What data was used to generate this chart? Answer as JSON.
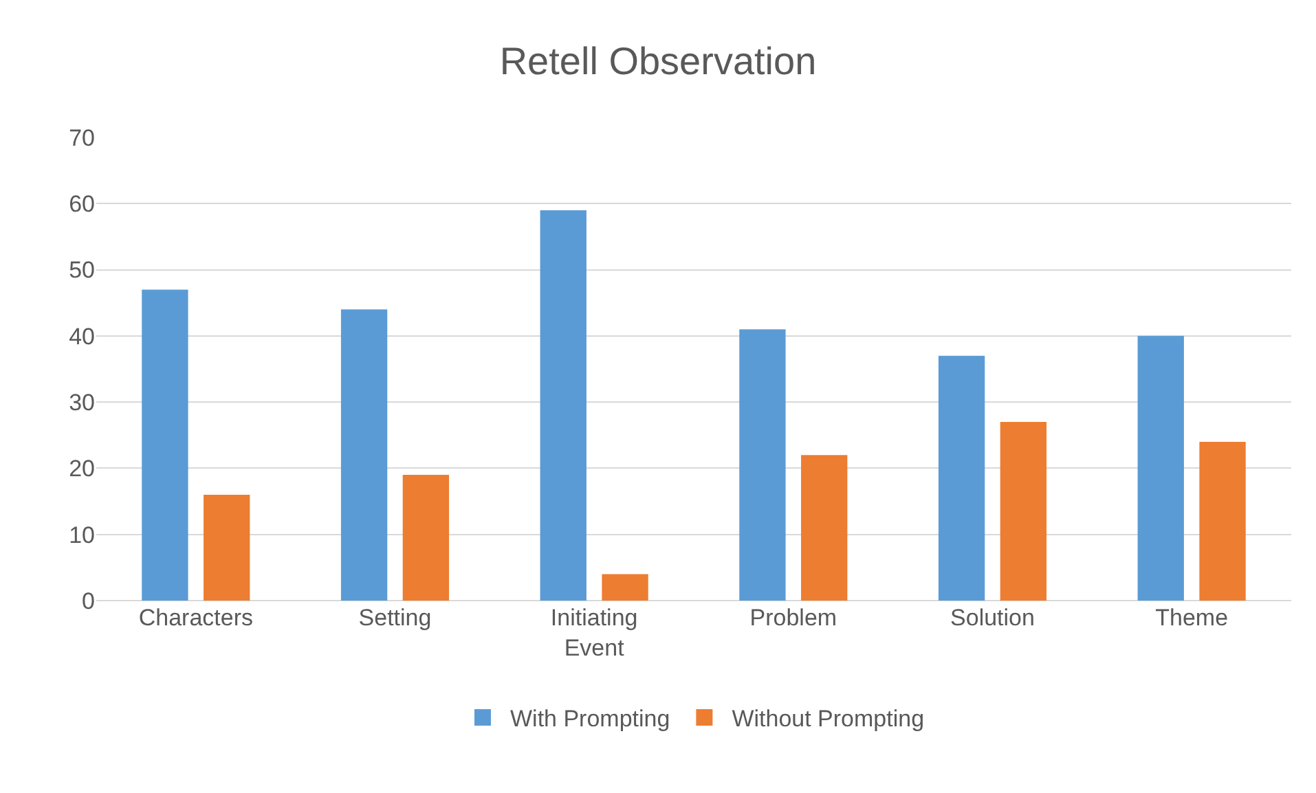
{
  "chart_data": {
    "type": "bar",
    "title": "Retell Observation",
    "categories": [
      "Characters",
      "Setting",
      "Initiating Event",
      "Problem",
      "Solution",
      "Theme"
    ],
    "series": [
      {
        "name": "With Prompting",
        "color": "#5b9bd5",
        "values": [
          47,
          44,
          59,
          41,
          37,
          40
        ]
      },
      {
        "name": "Without Prompting",
        "color": "#ed7d31",
        "values": [
          16,
          19,
          4,
          22,
          27,
          24
        ]
      }
    ],
    "ylim": [
      0,
      70
    ],
    "yticks": [
      0,
      10,
      20,
      30,
      40,
      50,
      60,
      70
    ],
    "grid": "y",
    "legend": "bottom"
  }
}
